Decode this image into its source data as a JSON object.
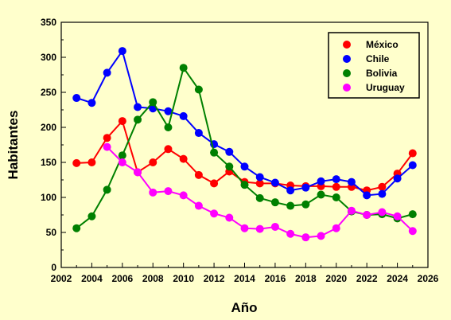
{
  "chart_data": {
    "type": "line",
    "xlabel": "Año",
    "ylabel": "Habitantes",
    "xlim": [
      2002,
      2026
    ],
    "ylim": [
      0,
      350
    ],
    "xticks": [
      2002,
      2004,
      2006,
      2008,
      2010,
      2012,
      2014,
      2016,
      2018,
      2020,
      2022,
      2024,
      2026
    ],
    "yticks": [
      0,
      50,
      100,
      150,
      200,
      250,
      300,
      350
    ],
    "grid": false,
    "legend_position": "top-right",
    "x": [
      2003,
      2004,
      2005,
      2006,
      2007,
      2008,
      2009,
      2010,
      2011,
      2012,
      2013,
      2014,
      2015,
      2016,
      2017,
      2018,
      2019,
      2020,
      2021,
      2022,
      2023,
      2024,
      2025
    ],
    "series": [
      {
        "name": "México",
        "color": "#ff0000",
        "values": [
          149,
          150,
          185,
          209,
          136,
          150,
          169,
          155,
          132,
          120,
          137,
          122,
          120,
          120,
          117,
          116,
          116,
          115,
          115,
          110,
          115,
          134,
          163
        ]
      },
      {
        "name": "Chile",
        "color": "#0000ff",
        "values": [
          242,
          235,
          278,
          309,
          229,
          227,
          223,
          216,
          192,
          176,
          165,
          144,
          129,
          121,
          110,
          114,
          123,
          126,
          122,
          103,
          105,
          127,
          146
        ]
      },
      {
        "name": "Bolivia",
        "color": "#008000",
        "values": [
          56,
          73,
          111,
          160,
          211,
          236,
          200,
          285,
          254,
          164,
          144,
          118,
          99,
          93,
          88,
          90,
          104,
          100,
          80,
          75,
          76,
          70,
          76
        ]
      },
      {
        "name": "Uruguay",
        "color": "#ff00ff",
        "values": [
          null,
          null,
          172,
          150,
          136,
          107,
          109,
          103,
          88,
          77,
          71,
          56,
          55,
          58,
          48,
          43,
          45,
          56,
          81,
          75,
          79,
          73,
          52
        ]
      }
    ]
  }
}
